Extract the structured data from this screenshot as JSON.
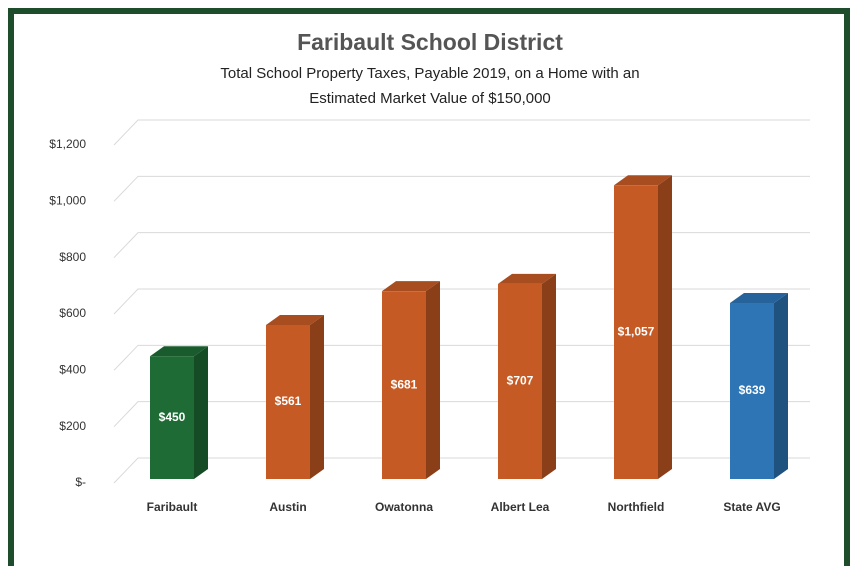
{
  "chart_data": {
    "type": "bar3d",
    "title": "Faribault School District",
    "subtitle": [
      "Total School Property Taxes, Payable 2019, on a Home with an",
      "Estimated Market Value of $150,000"
    ],
    "categories": [
      "Faribault",
      "Austin",
      "Owatonna",
      "Albert Lea",
      "Northfield",
      "State AVG"
    ],
    "values": [
      450,
      561,
      681,
      707,
      1057,
      639
    ],
    "value_labels": [
      "$450",
      "$561",
      "$681",
      "$707",
      "$1,057",
      "$639"
    ],
    "colors": [
      "#1e6b35",
      "#c55a24",
      "#c55a24",
      "#c55a24",
      "#c55a24",
      "#2e75b6"
    ],
    "ylim": [
      0,
      1200
    ],
    "yticks": [
      {
        "value": 0,
        "label": "$-"
      },
      {
        "value": 200,
        "label": "$200"
      },
      {
        "value": 400,
        "label": "$400"
      },
      {
        "value": 600,
        "label": "$600"
      },
      {
        "value": 800,
        "label": "$800"
      },
      {
        "value": 1000,
        "label": "$1,000"
      },
      {
        "value": 1200,
        "label": "$1,200"
      }
    ],
    "grid": true
  }
}
